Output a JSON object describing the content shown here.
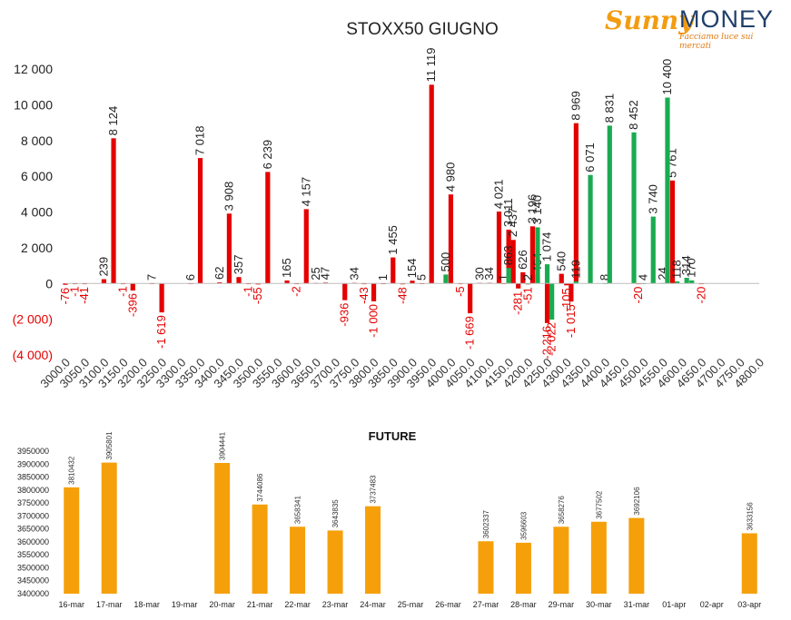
{
  "logo": {
    "brand_a": "Sunny",
    "brand_b": "MONEY",
    "tagline": "Facciamo luce sui mercati",
    "colors": {
      "sunny": "#f39c12",
      "money": "#1f3f6b"
    }
  },
  "chart_data": [
    {
      "type": "bar",
      "title": "STOXX50 GIUGNO",
      "xlabel": "",
      "ylabel": "",
      "ylim": [
        -4000,
        12000
      ],
      "yticks": [
        -4000,
        -2000,
        0,
        2000,
        4000,
        6000,
        8000,
        10000,
        12000
      ],
      "ytick_labels": [
        "(4 000)",
        "(2 000)",
        "0",
        "2 000",
        "4 000",
        "6 000",
        "8 000",
        "10 000",
        "12 000"
      ],
      "grid": false,
      "legend": "none",
      "categories": [
        "3000.0",
        "3050.0",
        "3100.0",
        "3150.0",
        "3200.0",
        "3250.0",
        "3300.0",
        "3350.0",
        "3400.0",
        "3450.0",
        "3500.0",
        "3550.0",
        "3600.0",
        "3650.0",
        "3700.0",
        "3750.0",
        "3800.0",
        "3850.0",
        "3900.0",
        "3950.0",
        "4000.0",
        "4050.0",
        "4100.0",
        "4150.0",
        "4200.0",
        "4250.0",
        "4300.0",
        "4350.0",
        "4400.0",
        "4450.0",
        "4500.0",
        "4550.0",
        "4600.0",
        "4650.0",
        "4700.0",
        "4750.0",
        "4800.0"
      ],
      "series": [
        {
          "color": "#e50000",
          "points": [
            {
              "x": 3000,
              "y": -76
            },
            {
              "x": 3025,
              "y": -1
            },
            {
              "x": 3050,
              "y": -41
            },
            {
              "x": 3100,
              "y": 239
            },
            {
              "x": 3125,
              "y": 8124
            },
            {
              "x": 3150,
              "y": -1
            },
            {
              "x": 3175,
              "y": -396
            },
            {
              "x": 3225,
              "y": 7
            },
            {
              "x": 3250,
              "y": -1619
            },
            {
              "x": 3325,
              "y": 6
            },
            {
              "x": 3350,
              "y": 7018
            },
            {
              "x": 3400,
              "y": 62
            },
            {
              "x": 3425,
              "y": 3908
            },
            {
              "x": 3450,
              "y": 357
            },
            {
              "x": 3475,
              "y": -1
            },
            {
              "x": 3500,
              "y": -55
            },
            {
              "x": 3525,
              "y": 6239
            },
            {
              "x": 3575,
              "y": 165
            },
            {
              "x": 3600,
              "y": -2
            },
            {
              "x": 3625,
              "y": 4157
            },
            {
              "x": 3650,
              "y": 25
            },
            {
              "x": 3675,
              "y": 47
            },
            {
              "x": 3725,
              "y": -936
            },
            {
              "x": 3750,
              "y": 34
            },
            {
              "x": 3775,
              "y": -43
            },
            {
              "x": 3800,
              "y": -1000
            },
            {
              "x": 3825,
              "y": 1
            },
            {
              "x": 3850,
              "y": 1455
            },
            {
              "x": 3875,
              "y": -48
            },
            {
              "x": 3900,
              "y": 154
            },
            {
              "x": 3925,
              "y": 5
            },
            {
              "x": 3950,
              "y": 11119
            },
            {
              "x": 4000,
              "y": 4980
            },
            {
              "x": 4025,
              "y": -5
            },
            {
              "x": 4050,
              "y": -1669
            },
            {
              "x": 4075,
              "y": 30
            },
            {
              "x": 4100,
              "y": 34
            },
            {
              "x": 4125,
              "y": 4021
            },
            {
              "x": 4137,
              "y": 1
            },
            {
              "x": 4150,
              "y": 3011
            },
            {
              "x": 4162,
              "y": 2437
            },
            {
              "x": 4175,
              "y": -281
            },
            {
              "x": 4187,
              "y": 626
            },
            {
              "x": 4200,
              "y": -51
            },
            {
              "x": 4212,
              "y": 3196
            },
            {
              "x": 4225,
              "y": 464
            },
            {
              "x": 4250,
              "y": -2216
            },
            {
              "x": 4287,
              "y": 540
            },
            {
              "x": 4300,
              "y": -105
            },
            {
              "x": 4312,
              "y": -1015
            },
            {
              "x": 4325,
              "y": 8969
            },
            {
              "x": 4487,
              "y": -20
            },
            {
              "x": 4575,
              "y": 5761
            },
            {
              "x": 4650,
              "y": -20
            }
          ]
        },
        {
          "color": "#1aab50",
          "points": [
            {
              "x": 3987,
              "y": 500
            },
            {
              "x": 4150,
              "y": 863
            },
            {
              "x": 4200,
              "y": 2
            },
            {
              "x": 4225,
              "y": 3140
            },
            {
              "x": 4250,
              "y": 1074
            },
            {
              "x": 4262,
              "y": -2022
            },
            {
              "x": 4325,
              "y": 119
            },
            {
              "x": 4362,
              "y": 6071
            },
            {
              "x": 4400,
              "y": 8
            },
            {
              "x": 4412,
              "y": 8831
            },
            {
              "x": 4475,
              "y": 8452
            },
            {
              "x": 4500,
              "y": 4
            },
            {
              "x": 4525,
              "y": 3740
            },
            {
              "x": 4550,
              "y": 24
            },
            {
              "x": 4562,
              "y": 10400
            },
            {
              "x": 4587,
              "y": 118
            },
            {
              "x": 4612,
              "y": 314
            },
            {
              "x": 4625,
              "y": 170
            }
          ]
        }
      ]
    },
    {
      "type": "bar",
      "title": "FUTURE",
      "xlabel": "",
      "ylabel": "",
      "ylim": [
        3400000,
        3950000
      ],
      "yticks": [
        3400000,
        3450000,
        3500000,
        3550000,
        3600000,
        3650000,
        3700000,
        3750000,
        3800000,
        3850000,
        3900000,
        3950000
      ],
      "grid": false,
      "legend": "none",
      "categories": [
        "16-mar",
        "17-mar",
        "18-mar",
        "19-mar",
        "20-mar",
        "21-mar",
        "22-mar",
        "23-mar",
        "24-mar",
        "25-mar",
        "26-mar",
        "27-mar",
        "28-mar",
        "29-mar",
        "30-mar",
        "31-mar",
        "01-apr",
        "02-apr",
        "03-apr"
      ],
      "values": [
        3810432,
        3905801,
        null,
        null,
        3904441,
        3744086,
        3658341,
        3643835,
        3737483,
        null,
        null,
        3602337,
        3596603,
        3658276,
        3677502,
        3692106,
        null,
        null,
        3633156
      ],
      "color": "#f5a00a"
    }
  ]
}
